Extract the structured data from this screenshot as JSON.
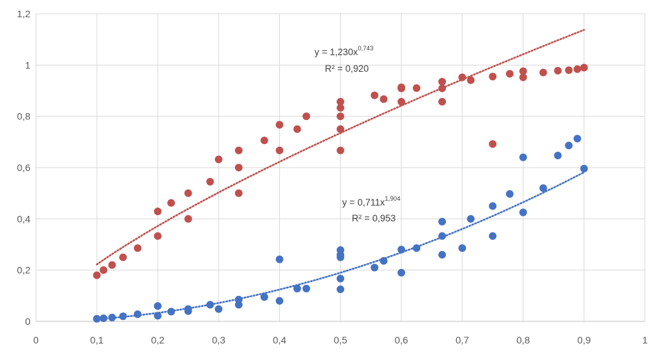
{
  "chart_data": {
    "type": "scatter",
    "title": "",
    "xlabel": "",
    "ylabel": "",
    "xlim": [
      0,
      1
    ],
    "ylim": [
      0,
      1.2
    ],
    "grid": "vertical and horizontal",
    "x_tick_labels": [
      "0",
      "0,1",
      "0,2",
      "0,3",
      "0,4",
      "0,5",
      "0,6",
      "0,7",
      "0,8",
      "0,9",
      "1"
    ],
    "y_tick_labels": [
      "0",
      "0,2",
      "0,4",
      "0,6",
      "0,8",
      "1",
      "1,2"
    ],
    "series": [
      {
        "name": "red",
        "color": "#C0504D",
        "trendline": {
          "type": "power",
          "a": 1.23,
          "b": 0.743,
          "x_range": [
            0.1,
            0.9
          ],
          "color": "#C0504D"
        },
        "equation": {
          "prefix": "y = 1,230x",
          "exponent": "0,743",
          "r2": "R² = 0,920"
        },
        "points": [
          [
            0.1,
            0.18
          ],
          [
            0.111,
            0.2
          ],
          [
            0.125,
            0.22
          ],
          [
            0.143,
            0.25
          ],
          [
            0.167,
            0.286
          ],
          [
            0.2,
            0.333
          ],
          [
            0.2,
            0.429
          ],
          [
            0.222,
            0.462
          ],
          [
            0.25,
            0.4
          ],
          [
            0.25,
            0.5
          ],
          [
            0.286,
            0.545
          ],
          [
            0.3,
            0.632
          ],
          [
            0.333,
            0.5
          ],
          [
            0.333,
            0.6
          ],
          [
            0.333,
            0.667
          ],
          [
            0.375,
            0.706
          ],
          [
            0.4,
            0.667
          ],
          [
            0.4,
            0.767
          ],
          [
            0.429,
            0.75
          ],
          [
            0.444,
            0.8
          ],
          [
            0.5,
            0.667
          ],
          [
            0.5,
            0.75
          ],
          [
            0.5,
            0.8
          ],
          [
            0.5,
            0.833
          ],
          [
            0.5,
            0.857
          ],
          [
            0.556,
            0.882
          ],
          [
            0.571,
            0.867
          ],
          [
            0.6,
            0.857
          ],
          [
            0.6,
            0.909
          ],
          [
            0.6,
            0.913
          ],
          [
            0.625,
            0.91
          ],
          [
            0.667,
            0.857
          ],
          [
            0.667,
            0.909
          ],
          [
            0.667,
            0.935
          ],
          [
            0.7,
            0.952
          ],
          [
            0.714,
            0.941
          ],
          [
            0.75,
            0.692
          ],
          [
            0.75,
            0.955
          ],
          [
            0.778,
            0.966
          ],
          [
            0.8,
            0.952
          ],
          [
            0.8,
            0.976
          ],
          [
            0.833,
            0.971
          ],
          [
            0.857,
            0.978
          ],
          [
            0.875,
            0.98
          ],
          [
            0.889,
            0.984
          ],
          [
            0.9,
            0.99
          ]
        ]
      },
      {
        "name": "blue",
        "color": "#4472C4",
        "trendline": {
          "type": "power",
          "a": 0.711,
          "b": 1.904,
          "x_range": [
            0.1,
            0.9
          ],
          "color": "#4472C4"
        },
        "equation": {
          "prefix": "y = 0,711x",
          "exponent": "1,904",
          "r2": "R² = 0,953"
        },
        "points": [
          [
            0.1,
            0.01
          ],
          [
            0.111,
            0.012
          ],
          [
            0.125,
            0.015
          ],
          [
            0.143,
            0.02
          ],
          [
            0.167,
            0.028
          ],
          [
            0.2,
            0.022
          ],
          [
            0.2,
            0.06
          ],
          [
            0.222,
            0.038
          ],
          [
            0.25,
            0.04
          ],
          [
            0.25,
            0.048
          ],
          [
            0.286,
            0.065
          ],
          [
            0.3,
            0.048
          ],
          [
            0.333,
            0.065
          ],
          [
            0.333,
            0.085
          ],
          [
            0.375,
            0.095
          ],
          [
            0.4,
            0.08
          ],
          [
            0.4,
            0.242
          ],
          [
            0.429,
            0.128
          ],
          [
            0.444,
            0.128
          ],
          [
            0.5,
            0.125
          ],
          [
            0.5,
            0.167
          ],
          [
            0.5,
            0.25
          ],
          [
            0.5,
            0.26
          ],
          [
            0.5,
            0.278
          ],
          [
            0.556,
            0.21
          ],
          [
            0.571,
            0.236
          ],
          [
            0.6,
            0.19
          ],
          [
            0.6,
            0.28
          ],
          [
            0.625,
            0.286
          ],
          [
            0.667,
            0.26
          ],
          [
            0.667,
            0.333
          ],
          [
            0.667,
            0.389
          ],
          [
            0.7,
            0.286
          ],
          [
            0.714,
            0.4
          ],
          [
            0.75,
            0.333
          ],
          [
            0.75,
            0.45
          ],
          [
            0.778,
            0.497
          ],
          [
            0.8,
            0.425
          ],
          [
            0.8,
            0.64
          ],
          [
            0.833,
            0.52
          ],
          [
            0.857,
            0.647
          ],
          [
            0.875,
            0.686
          ],
          [
            0.889,
            0.713
          ],
          [
            0.9,
            0.596
          ]
        ]
      }
    ]
  }
}
